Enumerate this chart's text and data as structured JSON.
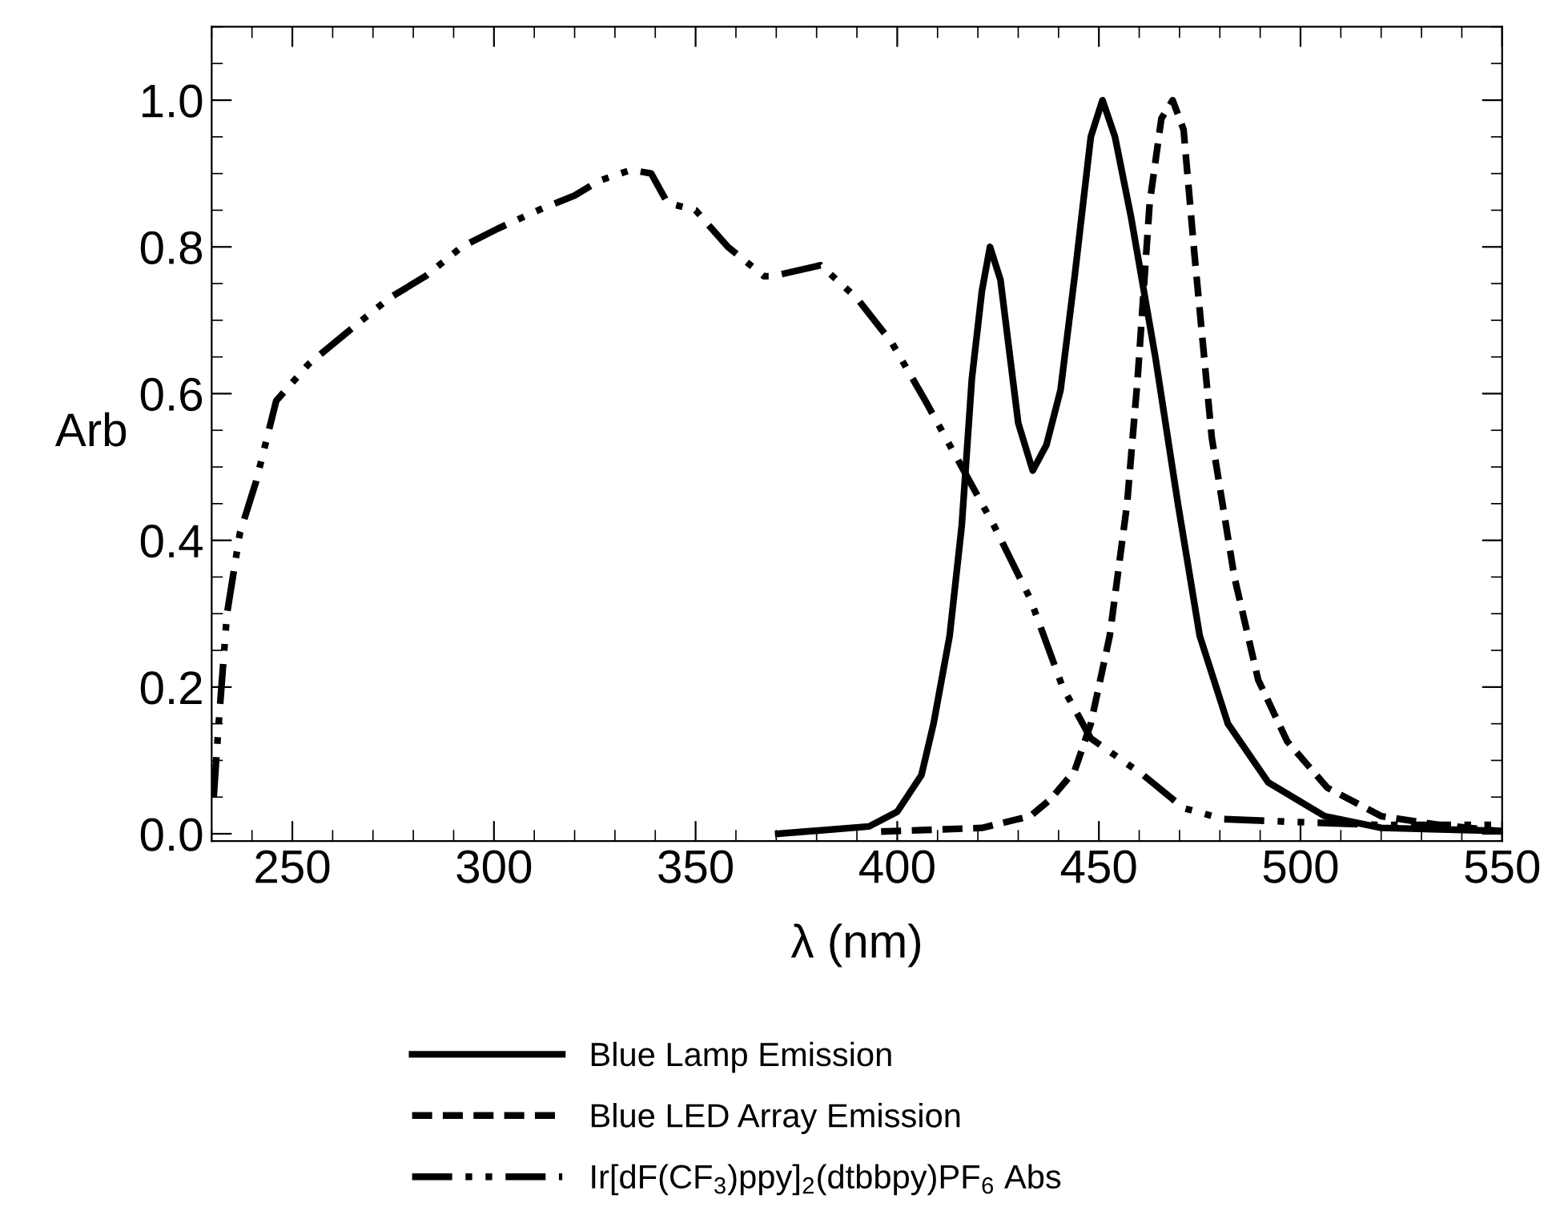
{
  "chart_data": {
    "type": "line",
    "xlabel": "λ (nm)",
    "ylabel": "Arb",
    "xlim": [
      230,
      550
    ],
    "ylim": [
      -0.01,
      1.1
    ],
    "xticks": [
      250,
      300,
      350,
      400,
      450,
      500,
      550
    ],
    "yticks": [
      {
        "value": 0,
        "label": "0.0"
      },
      0.2,
      0.4,
      0.6,
      0.8,
      {
        "value": 1,
        "label": "1.0"
      }
    ],
    "grid": false,
    "legend": "bottom",
    "marker": "none",
    "series": [
      {
        "name": "Blue Lamp Emission",
        "color": "#000000",
        "line_style": "solid",
        "x": [
          370.5,
          393,
          400,
          406,
          409,
          413,
          416,
          418.5,
          421,
          423,
          425.6,
          430,
          433.6,
          437,
          440.5,
          444,
          448,
          450.9,
          454,
          458,
          464,
          469.6,
          475,
          482,
          492,
          506,
          520,
          549
        ],
        "values": [
          0,
          0.01,
          0.03,
          0.08,
          0.15,
          0.27,
          0.42,
          0.62,
          0.74,
          0.8,
          0.755,
          0.56,
          0.495,
          0.53,
          0.605,
          0.76,
          0.95,
          1.0,
          0.95,
          0.84,
          0.65,
          0.45,
          0.27,
          0.15,
          0.07,
          0.024,
          0.008,
          0.004
        ]
      },
      {
        "name": "Blue LED Array Emission",
        "color": "#000000",
        "line_style": "dashed",
        "x": [
          396,
          421,
          433,
          438,
          444,
          448,
          452.7,
          457,
          459.6,
          462.6,
          465.5,
          468.3,
          471,
          473.7,
          478,
          483.6,
          489.5,
          496.7,
          506.6,
          520,
          534.6,
          549
        ],
        "values": [
          0.003,
          0.008,
          0.024,
          0.047,
          0.086,
          0.15,
          0.27,
          0.45,
          0.62,
          0.86,
          0.975,
          1.0,
          0.96,
          0.79,
          0.54,
          0.35,
          0.21,
          0.126,
          0.063,
          0.024,
          0.012,
          0.004
        ]
      },
      {
        "name": "Ir[dF(CF$_{3}$)ppy]$_{2}$(dtbbpy)PF$_{6}$ Abs",
        "color": "#000000",
        "line_style": "dashdot",
        "x": [
          230.5,
          231.8,
          233.8,
          237,
          241,
          246,
          254,
          265,
          274,
          283,
          292,
          301,
          311,
          320,
          326,
          334,
          339,
          343,
          350,
          358,
          367,
          369,
          381,
          390,
          398.6,
          407,
          416,
          424,
          433,
          441,
          448,
          461,
          471,
          481,
          499,
          520,
          549
        ],
        "values": [
          0.05,
          0.155,
          0.3,
          0.41,
          0.48,
          0.59,
          0.64,
          0.69,
          0.73,
          0.76,
          0.8,
          0.825,
          0.85,
          0.87,
          0.89,
          0.905,
          0.9,
          0.86,
          0.85,
          0.8,
          0.76,
          0.76,
          0.775,
          0.73,
          0.67,
          0.59,
          0.5,
          0.42,
          0.32,
          0.2,
          0.13,
          0.08,
          0.035,
          0.02,
          0.016,
          0.012,
          0.012
        ]
      }
    ]
  }
}
